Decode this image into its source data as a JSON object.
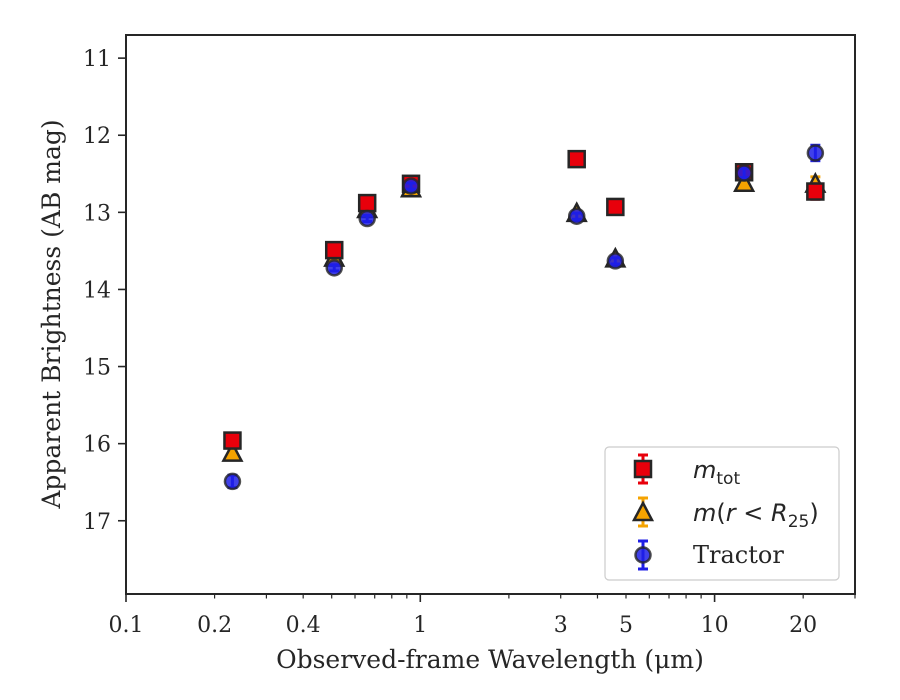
{
  "chart_data": {
    "type": "scatter",
    "xlabel": "Observed-frame Wavelength (μm)",
    "ylabel": "Apparent Brightness (AB mag)",
    "xscale": "log",
    "xlim": [
      0.1,
      30
    ],
    "ylim": [
      17.95,
      10.7
    ],
    "y_inverted": true,
    "xticks": [
      0.1,
      0.2,
      0.4,
      1,
      3,
      5,
      10,
      20
    ],
    "xtick_labels": [
      "0.1",
      "0.2",
      "0.4",
      "1",
      "3",
      "5",
      "10",
      "20"
    ],
    "yticks": [
      11,
      12,
      13,
      14,
      15,
      16,
      17
    ],
    "ytick_labels": [
      "11",
      "12",
      "13",
      "14",
      "15",
      "16",
      "17"
    ],
    "grid": false,
    "legend_placement": "lower-right",
    "series": [
      {
        "name": "m_tot",
        "marker": "square",
        "face_color": "#e8000b",
        "edge_color": "#262626",
        "errbar_color": "#e8000b",
        "points": [
          {
            "x": 0.23,
            "y": 15.96,
            "err": 0.05
          },
          {
            "x": 0.51,
            "y": 13.49,
            "err": 0.04
          },
          {
            "x": 0.66,
            "y": 12.88,
            "err": 0.04
          },
          {
            "x": 0.93,
            "y": 12.63,
            "err": 0.04
          },
          {
            "x": 3.4,
            "y": 12.31,
            "err": 0.03
          },
          {
            "x": 4.6,
            "y": 12.93,
            "err": 0.03
          },
          {
            "x": 12.6,
            "y": 12.48,
            "err": 0.05
          },
          {
            "x": 22.0,
            "y": 12.73,
            "err": 0.1
          }
        ]
      },
      {
        "name": "m(r < R25)",
        "marker": "triangle",
        "face_color": "#f5a300",
        "edge_color": "#262626",
        "errbar_color": "#f5a300",
        "points": [
          {
            "x": 0.23,
            "y": 16.13,
            "err": 0.05
          },
          {
            "x": 0.51,
            "y": 13.6,
            "err": 0.04
          },
          {
            "x": 0.66,
            "y": 12.97,
            "err": 0.04
          },
          {
            "x": 0.93,
            "y": 12.7,
            "err": 0.04
          },
          {
            "x": 3.4,
            "y": 13.02,
            "err": 0.03
          },
          {
            "x": 4.6,
            "y": 13.61,
            "err": 0.03
          },
          {
            "x": 12.6,
            "y": 12.63,
            "err": 0.05
          },
          {
            "x": 22.0,
            "y": 12.64,
            "err": 0.1
          }
        ]
      },
      {
        "name": "Tractor",
        "marker": "circle",
        "face_color": "#1f1fe6",
        "edge_color": "#262626",
        "errbar_color": "#1f1fe6",
        "points": [
          {
            "x": 0.23,
            "y": 16.49,
            "err": 0.08
          },
          {
            "x": 0.51,
            "y": 13.72,
            "err": 0.04
          },
          {
            "x": 0.66,
            "y": 13.08,
            "err": 0.04
          },
          {
            "x": 0.93,
            "y": 12.66,
            "err": 0.04
          },
          {
            "x": 3.4,
            "y": 13.05,
            "err": 0.04
          },
          {
            "x": 4.6,
            "y": 13.63,
            "err": 0.04
          },
          {
            "x": 12.6,
            "y": 12.49,
            "err": 0.06
          },
          {
            "x": 22.0,
            "y": 12.23,
            "err": 0.1
          }
        ]
      }
    ]
  }
}
